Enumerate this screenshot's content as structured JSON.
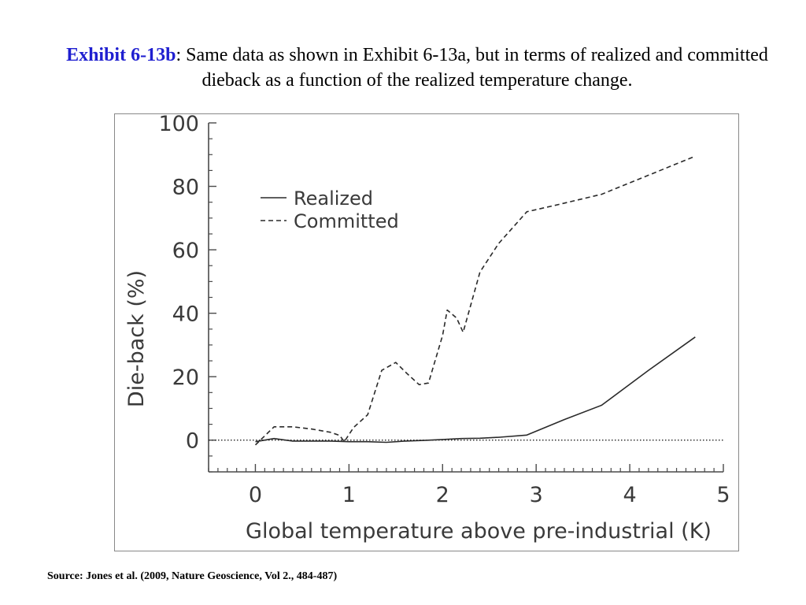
{
  "caption": {
    "lead": "Exhibit 6-13b",
    "text": ": Same data as shown in Exhibit 6-13a, but in terms of realized and committed dieback as a function of the realized temperature change."
  },
  "source": "Source: Jones et al. (2009, Nature Geoscience, Vol 2., 484-487)",
  "chart_data": {
    "type": "line",
    "xlabel": "Global temperature above pre-industrial (K)",
    "ylabel": "Die-back (%)",
    "xlim": [
      -0.5,
      5
    ],
    "ylim": [
      -10,
      100
    ],
    "xticks": [
      0,
      1,
      2,
      3,
      4,
      5
    ],
    "yticks": [
      0,
      20,
      40,
      60,
      80,
      100
    ],
    "reference_line": {
      "y": 0,
      "style": "dotted"
    },
    "legend_position": "upper-left",
    "grid": false,
    "series": [
      {
        "name": "Realized",
        "style": "solid",
        "x": [
          0,
          0.2,
          0.4,
          0.6,
          0.8,
          1.0,
          1.2,
          1.4,
          1.6,
          1.8,
          2.0,
          2.2,
          2.4,
          2.6,
          2.9,
          3.3,
          3.7,
          4.2,
          4.7
        ],
        "y": [
          -0.5,
          0.5,
          -0.3,
          -0.3,
          -0.3,
          -0.5,
          -0.5,
          -0.7,
          -0.3,
          -0.1,
          0.2,
          0.5,
          0.6,
          0.9,
          1.6,
          6.5,
          11,
          22,
          32.5
        ]
      },
      {
        "name": "Committed",
        "style": "dashed",
        "x": [
          0,
          0.2,
          0.4,
          0.6,
          0.8,
          0.9,
          0.95,
          1.05,
          1.2,
          1.35,
          1.5,
          1.62,
          1.75,
          1.85,
          2.0,
          2.05,
          2.15,
          2.22,
          2.4,
          2.6,
          2.75,
          2.9,
          3.2,
          3.7,
          4.2,
          4.7
        ],
        "y": [
          -1.5,
          4.2,
          4.2,
          3.5,
          2.5,
          1.5,
          -0.5,
          4,
          8,
          22,
          24.5,
          21,
          17.5,
          18,
          33,
          41,
          38.5,
          34,
          53,
          62,
          67,
          72,
          74,
          77.5,
          83.5,
          89.5
        ]
      }
    ]
  }
}
